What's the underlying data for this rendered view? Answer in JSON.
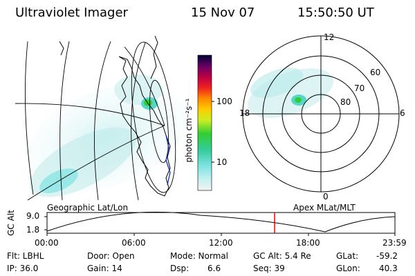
{
  "header": {
    "instrument": "Ultraviolet Imager",
    "date": "15 Nov 07",
    "time": "15:50:50 UT"
  },
  "colorbar": {
    "unit_label": "photon cm⁻²s⁻¹",
    "ticks": [
      "100",
      "10"
    ]
  },
  "polar_plot": {
    "mlt_labels": [
      "12",
      "18",
      "6",
      "0"
    ],
    "mlat_labels": [
      "60",
      "70",
      "80"
    ]
  },
  "panel_labels": {
    "left": "Geographic Lat/Lon",
    "right": "Apex MLat/MLT"
  },
  "orbit_plot": {
    "ylabel": "GC Alt",
    "y_ticks": [
      "9.0",
      "1.8"
    ],
    "x_ticks": [
      "00:00",
      "06:00",
      "12:00",
      "18:00",
      "23:59"
    ]
  },
  "info": {
    "filter": "Flt: LBHL",
    "ip": "IP: 36.0",
    "door": "Door: Open",
    "gain": "Gain: 14",
    "mode": "Mode: Normal",
    "dsp_label": "Dsp:",
    "dsp_value": "6.6",
    "gc_alt": "GC Alt: 5.4 Re",
    "seq": "Seq: 39",
    "glat_label": "GLat:",
    "glat_value": "-59.2",
    "glon_label": "GLon:",
    "glon_value": "40.3"
  },
  "colors": {
    "orbit_marker": "#cc0000",
    "aurora_high": "#33cc33",
    "aurora_mid": "#66dddd"
  }
}
